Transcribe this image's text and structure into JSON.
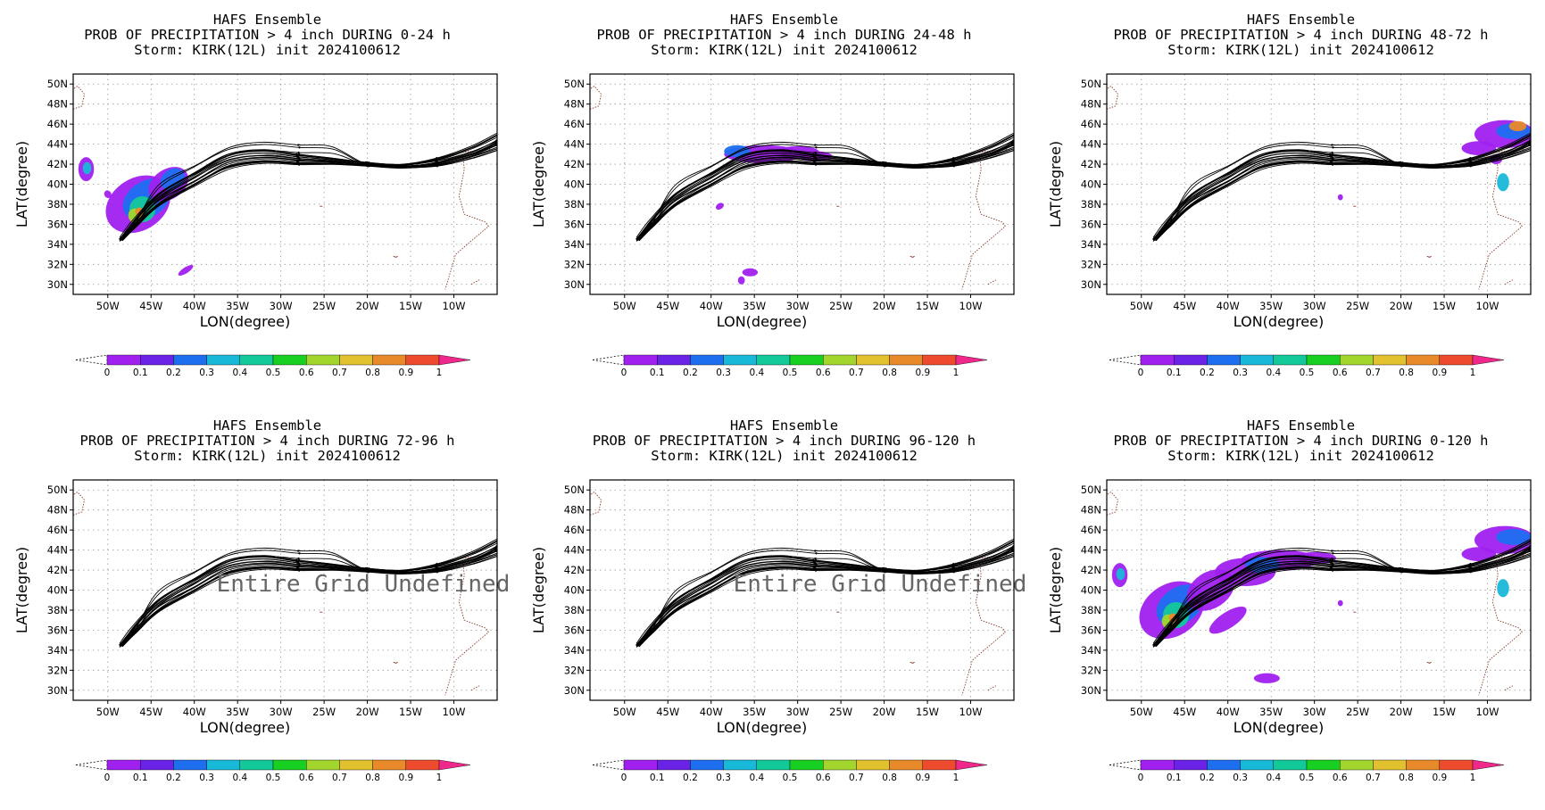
{
  "chart_data": {
    "type": "heatmap",
    "x_ticks": [
      "50W",
      "45W",
      "40W",
      "35W",
      "30W",
      "25W",
      "20W",
      "15W",
      "10W"
    ],
    "y_ticks": [
      "50N",
      "48N",
      "46N",
      "44N",
      "42N",
      "40N",
      "38N",
      "36N",
      "34N",
      "32N",
      "30N"
    ],
    "xlabel": "LON(degree)",
    "ylabel": "LAT(degree)",
    "xlim": [
      -54,
      -5
    ],
    "ylim": [
      29,
      51
    ],
    "grid": true,
    "colorbar": {
      "ticks": [
        "0",
        "0.1",
        "0.2",
        "0.3",
        "0.4",
        "0.5",
        "0.6",
        "0.7",
        "0.8",
        "0.9",
        "1"
      ],
      "colors": [
        "#a020f0",
        "#6a22e6",
        "#1e6ff0",
        "#18b8d8",
        "#12c99a",
        "#18d022",
        "#a2d62c",
        "#e2c12e",
        "#e88a2a",
        "#ee4a2e",
        "#f0288c"
      ]
    },
    "panels": [
      {
        "lines": [
          "HAFS Ensemble",
          "PROB OF PRECIPITATION > 4 inch DURING  0-24 h",
          "Storm: KIRK(12L) init 2024100612"
        ],
        "undefined_text": ""
      },
      {
        "lines": [
          "HAFS Ensemble",
          "PROB OF PRECIPITATION > 4 inch DURING 24-48 h",
          "Storm: KIRK(12L) init 2024100612"
        ],
        "undefined_text": ""
      },
      {
        "lines": [
          "HAFS Ensemble",
          "PROB OF PRECIPITATION > 4 inch DURING 48-72 h",
          "Storm: KIRK(12L) init 2024100612"
        ],
        "undefined_text": ""
      },
      {
        "lines": [
          "HAFS Ensemble",
          "PROB OF PRECIPITATION > 4 inch DURING 72-96 h",
          "Storm: KIRK(12L) init 2024100612"
        ],
        "undefined_text": "Entire Grid Undefined"
      },
      {
        "lines": [
          "HAFS Ensemble",
          "PROB OF PRECIPITATION > 4 inch DURING 96-120 h",
          "Storm: KIRK(12L) init 2024100612"
        ],
        "undefined_text": "Entire Grid Undefined"
      },
      {
        "lines": [
          "HAFS Ensemble",
          "PROB OF PRECIPITATION > 4 inch DURING 0-120 h",
          "Storm: KIRK(12L) init 2024100612"
        ],
        "undefined_text": ""
      }
    ],
    "track_mean": [
      [
        -48.5,
        34.5
      ],
      [
        -47,
        36
      ],
      [
        -44,
        38.5
      ],
      [
        -40,
        40.5
      ],
      [
        -36,
        42.3
      ],
      [
        -32,
        42.8
      ],
      [
        -28,
        42.5
      ],
      [
        -24,
        42.3
      ],
      [
        -20,
        42.0
      ],
      [
        -16,
        41.8
      ],
      [
        -12,
        42.2
      ],
      [
        -8,
        43.2
      ],
      [
        -5,
        44.3
      ]
    ],
    "track_members": 20
  }
}
